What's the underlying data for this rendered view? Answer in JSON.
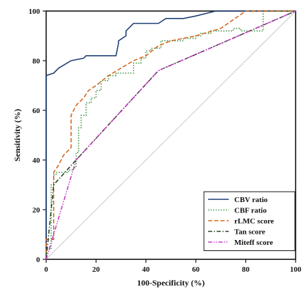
{
  "chart_data": {
    "type": "line",
    "xlabel": "100-Specificity (%)",
    "ylabel": "Sensitivity (%)",
    "xlim": [
      0,
      100
    ],
    "ylim": [
      0,
      100
    ],
    "x_ticks": [
      0,
      20,
      40,
      60,
      80,
      100
    ],
    "y_ticks": [
      0,
      20,
      40,
      60,
      80,
      100
    ],
    "grid": false,
    "legend_position": "bottom-right",
    "reference_line": {
      "x": [
        0,
        100
      ],
      "y": [
        0,
        100
      ],
      "color": "#c8c8c8"
    },
    "series": [
      {
        "name": "CBV ratio",
        "color": "#1f3f73",
        "dash": "solid",
        "x": [
          0,
          0,
          3,
          5,
          10,
          15,
          16,
          28,
          29,
          29,
          32,
          32,
          35,
          40,
          45,
          48,
          50,
          55,
          60,
          68,
          70,
          78,
          100
        ],
        "y": [
          0,
          74,
          75,
          77,
          80,
          81,
          82,
          82,
          87,
          88,
          90,
          92,
          95,
          95,
          95,
          97,
          97,
          97,
          98,
          100,
          100,
          100,
          100
        ]
      },
      {
        "name": "CBF ratio",
        "color": "#3d9140",
        "dash": "dotted",
        "x": [
          0,
          1,
          2,
          3,
          5,
          10,
          12,
          13,
          15,
          17,
          20,
          24,
          27,
          30,
          34,
          38,
          40,
          47,
          50,
          55,
          60,
          70,
          80,
          87,
          87,
          100
        ],
        "y": [
          0,
          12,
          24,
          29,
          34,
          37,
          40,
          50,
          57,
          62,
          65,
          70,
          73,
          74,
          78,
          82,
          84,
          84,
          86,
          88,
          89,
          90,
          92,
          92,
          100,
          100
        ],
        "x_step": [
          0,
          0,
          2,
          2,
          2,
          3,
          3,
          4,
          4,
          9,
          9,
          11,
          11,
          12,
          12,
          13,
          13,
          13,
          14,
          14,
          16,
          16,
          18,
          18,
          20,
          20,
          22,
          22,
          25,
          25,
          28,
          28,
          35,
          35,
          38,
          38,
          40,
          40,
          42,
          42,
          46,
          46,
          55,
          55,
          60,
          60,
          62,
          62,
          66,
          66,
          75,
          75,
          78,
          78,
          87,
          87,
          100
        ],
        "y_step": [
          0,
          4,
          4,
          24,
          30,
          30,
          34,
          34,
          35,
          35,
          36,
          36,
          37,
          37,
          43,
          43,
          49,
          53,
          53,
          58,
          58,
          63,
          63,
          65,
          65,
          68,
          68,
          72,
          72,
          74,
          74,
          75,
          75,
          79,
          79,
          81,
          81,
          84,
          84,
          85,
          85,
          88,
          88,
          89,
          89,
          90,
          90,
          91,
          91,
          92,
          92,
          93,
          93,
          92,
          92,
          100,
          100
        ]
      },
      {
        "name": "rLMC score",
        "color": "#d2691e",
        "dash": "dashed",
        "x": [
          0,
          0,
          3,
          3,
          5,
          7,
          10,
          10,
          12,
          15,
          17,
          20,
          25,
          30,
          35,
          40,
          45,
          50,
          55,
          60,
          70,
          80,
          100
        ],
        "y": [
          0,
          8,
          8,
          35,
          38,
          42,
          45,
          58,
          62,
          65,
          68,
          70,
          74,
          77,
          80,
          82,
          86,
          88,
          89,
          90,
          93,
          100,
          100
        ]
      },
      {
        "name": "Tan score",
        "color": "#224422",
        "dash": "dashdot",
        "x": [
          0,
          3,
          12,
          45,
          100
        ],
        "y": [
          0,
          30,
          40,
          76,
          100
        ]
      },
      {
        "name": "Miteff score",
        "color": "#c43bc4",
        "dash": "dashdotdot",
        "x": [
          0,
          12,
          45,
          100
        ],
        "y": [
          0,
          40,
          76,
          100
        ]
      }
    ]
  }
}
